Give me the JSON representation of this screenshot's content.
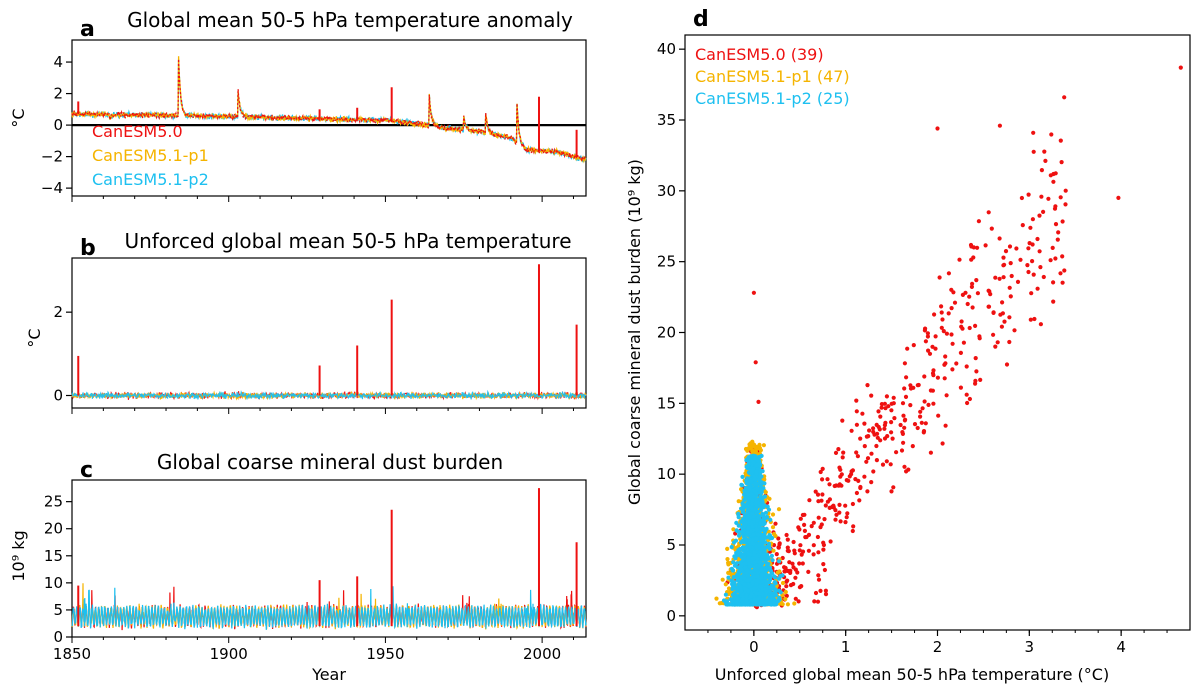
{
  "colors": {
    "canesm50": "#ee1111",
    "canesm51p1": "#f5b400",
    "canesm51p2": "#1ec0f0"
  },
  "chart_data": [
    {
      "panel": "a",
      "type": "line",
      "title": "Global mean 50-5 hPa temperature anomaly",
      "xlabel": "",
      "ylabel": "°C",
      "xlim": [
        1850,
        2014
      ],
      "ylim": [
        -4.5,
        5.4
      ],
      "yticks": [
        -4,
        -2,
        0,
        2,
        4
      ],
      "legend": [
        "CanESM5.0",
        "CanESM5.1-p1",
        "CanESM5.1-p2"
      ],
      "legend_location": "lower-left",
      "zero_line": true,
      "baseline": [
        [
          1850,
          0.7
        ],
        [
          1870,
          0.65
        ],
        [
          1900,
          0.55
        ],
        [
          1930,
          0.4
        ],
        [
          1950,
          0.3
        ],
        [
          1960,
          0.1
        ],
        [
          1970,
          -0.2
        ],
        [
          1980,
          -0.4
        ],
        [
          1990,
          -0.8
        ],
        [
          1995,
          -1.6
        ],
        [
          2005,
          -1.7
        ],
        [
          2014,
          -2.2
        ]
      ],
      "events_all": [
        [
          1884,
          4.3
        ],
        [
          1903,
          2.2
        ],
        [
          1964,
          1.9
        ],
        [
          1992,
          1.3
        ],
        [
          1975,
          0.5
        ],
        [
          1982,
          0.8
        ],
        [
          1862,
          0.4
        ]
      ],
      "spikes": {
        "CanESM5.0": [
          [
            1852,
            1.5
          ],
          [
            1929,
            1.0
          ],
          [
            1941,
            1.1
          ],
          [
            1952,
            2.4
          ],
          [
            1999,
            1.8
          ],
          [
            2011,
            -0.3
          ]
        ]
      }
    },
    {
      "panel": "b",
      "type": "line",
      "title": "Unforced global mean 50-5 hPa temperature",
      "xlabel": "",
      "ylabel": "°C",
      "xlim": [
        1850,
        2014
      ],
      "ylim": [
        -0.3,
        3.3
      ],
      "yticks": [
        0,
        2
      ],
      "spikes": {
        "CanESM5.0": [
          [
            1852,
            0.95
          ],
          [
            1929,
            0.72
          ],
          [
            1941,
            1.2
          ],
          [
            1952,
            2.3
          ],
          [
            1999,
            3.15
          ],
          [
            2011,
            1.7
          ]
        ]
      }
    },
    {
      "panel": "c",
      "type": "line",
      "title": "Global coarse mineral dust burden",
      "xlabel": "Year",
      "ylabel": "10⁹ kg",
      "xlim": [
        1850,
        2014
      ],
      "ylim": [
        0,
        29
      ],
      "yticks": [
        0,
        5,
        10,
        15,
        20,
        25
      ],
      "xticks": [
        1850,
        1900,
        1950,
        2000
      ],
      "spikes": {
        "CanESM5.0": [
          [
            1852,
            9.5
          ],
          [
            1929,
            10.5
          ],
          [
            1941,
            11.2
          ],
          [
            1952,
            23.5
          ],
          [
            1999,
            27.5
          ],
          [
            2011,
            17.5
          ]
        ]
      }
    },
    {
      "panel": "d",
      "type": "scatter",
      "title": "",
      "xlabel": "Unforced global mean 50-5 hPa temperature (°C)",
      "ylabel": "Global coarse mineral dust burden (10⁹ kg)",
      "xlim": [
        -0.75,
        4.75
      ],
      "ylim": [
        -1,
        41
      ],
      "xticks": [
        0,
        1,
        2,
        3,
        4
      ],
      "yticks": [
        0,
        5,
        10,
        15,
        20,
        25,
        30,
        35,
        40
      ],
      "legend_location": "top-left",
      "series": [
        {
          "name": "CanESM5.0 (39)",
          "label": "CanESM5.0 (39)"
        },
        {
          "name": "CanESM5.1-p1 (47)",
          "label": "CanESM5.1-p1 (47)"
        },
        {
          "name": "CanESM5.1-p2 (25)",
          "label": "CanESM5.1-p2 (25)"
        }
      ],
      "outliers": [
        [
          4.65,
          38.7
        ],
        [
          3.38,
          36.6
        ],
        [
          3.97,
          29.5
        ],
        [
          2.68,
          34.6
        ],
        [
          2.0,
          34.4
        ],
        [
          0.0,
          22.8
        ],
        [
          0.02,
          17.9
        ],
        [
          0.05,
          15.1
        ]
      ]
    }
  ],
  "text": {
    "a_label": "a",
    "b_label": "b",
    "c_label": "c",
    "d_label": "d",
    "a_title": "Global mean 50-5 hPa temperature anomaly",
    "b_title": "Unforced global mean 50-5 hPa temperature",
    "c_title": "Global coarse mineral dust burden",
    "a_ylabel": "°C",
    "b_ylabel": "°C",
    "c_ylabel": "10⁹ kg",
    "c_xlabel": "Year",
    "d_xlabel": "Unforced global mean 50-5 hPa temperature (°C)",
    "d_ylabel": "Global coarse mineral dust burden (10⁹ kg)",
    "leg_a1": "CanESM5.0",
    "leg_a2": "CanESM5.1-p1",
    "leg_a3": "CanESM5.1-p2",
    "leg_d1": "CanESM5.0 (39)",
    "leg_d2": "CanESM5.1-p1 (47)",
    "leg_d3": "CanESM5.1-p2 (25)"
  }
}
